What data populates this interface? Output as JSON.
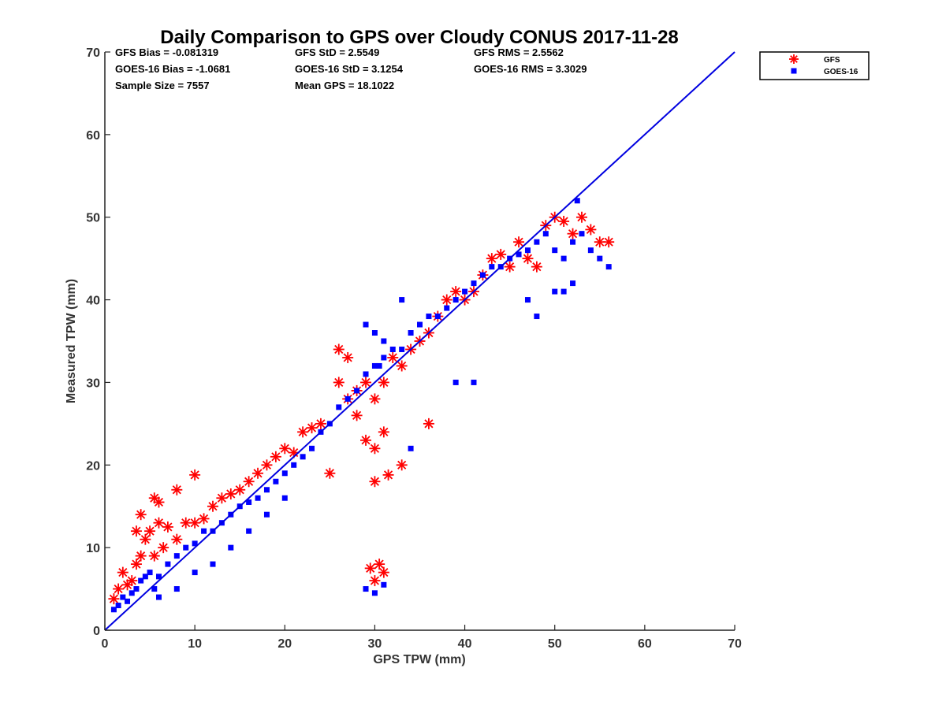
{
  "chart_data": {
    "type": "scatter",
    "title": "Daily Comparison to GPS over Cloudy CONUS 2017-11-28",
    "xlabel": "GPS TPW (mm)",
    "ylabel": "Measured TPW (mm)",
    "xlim": [
      0,
      70
    ],
    "ylim": [
      0,
      70
    ],
    "xticks": [
      "0",
      "10",
      "20",
      "30",
      "40",
      "50",
      "60",
      "70"
    ],
    "yticks": [
      "0",
      "10",
      "20",
      "30",
      "40",
      "50",
      "60",
      "70"
    ],
    "grid": false,
    "legend_position": "outside-top-right",
    "reference_line": {
      "x": [
        0,
        70
      ],
      "y": [
        0,
        70
      ],
      "color": "#0000e0"
    },
    "stats": [
      [
        "GFS Bias = -0.081319",
        "GFS StD = 2.5549",
        "GFS RMS = 2.5562"
      ],
      [
        "GOES-16 Bias = -1.0681",
        "GOES-16 StD = 3.1254",
        "GOES-16 RMS = 3.3029"
      ],
      [
        "Sample Size = 7557",
        "Mean GPS = 18.1022",
        ""
      ]
    ],
    "series": [
      {
        "name": "GFS",
        "marker": "asterisk",
        "color": "#ff0000",
        "x": [
          1.0,
          1.5,
          2.0,
          2.5,
          3.0,
          3.5,
          4.0,
          4.5,
          5.0,
          5.5,
          6.0,
          6.5,
          7.0,
          8.0,
          9.0,
          10.0,
          11.0,
          12.0,
          13.0,
          14.0,
          15.0,
          16.0,
          17.0,
          18.0,
          19.0,
          20.0,
          21.0,
          22.0,
          23.0,
          24.0,
          25.0,
          26.0,
          27.0,
          28.0,
          29.0,
          30.0,
          31.0,
          32.0,
          33.0,
          34.0,
          35.0,
          36.0,
          37.0,
          38.0,
          39.0,
          40.0,
          41.0,
          42.0,
          43.0,
          44.0,
          45.0,
          46.0,
          47.0,
          48.0,
          49.0,
          50.0,
          51.0,
          52.0,
          53.0,
          54.0,
          55.0,
          56.0,
          5.5,
          6.0,
          8.0,
          10.0,
          4.0,
          3.5,
          26.0,
          27.0,
          28.0,
          29.0,
          30.0,
          31.0,
          30.0,
          31.5,
          33.0,
          36.0,
          29.5,
          30.5,
          31.0,
          30.0
        ],
        "y": [
          3.8,
          5.0,
          7.0,
          5.5,
          6.0,
          8.0,
          9.0,
          11.0,
          12.0,
          9.0,
          13.0,
          10.0,
          12.5,
          11.0,
          13.0,
          13.0,
          13.5,
          15.0,
          16.0,
          16.5,
          17.0,
          18.0,
          19.0,
          20.0,
          21.0,
          22.0,
          21.5,
          24.0,
          24.5,
          25.0,
          19.0,
          30.0,
          28.0,
          26.0,
          30.0,
          28.0,
          30.0,
          33.0,
          32.0,
          34.0,
          35.0,
          36.0,
          38.0,
          40.0,
          41.0,
          40.0,
          41.0,
          43.0,
          45.0,
          45.5,
          44.0,
          47.0,
          45.0,
          44.0,
          49.0,
          50.0,
          49.5,
          48.0,
          50.0,
          48.5,
          47.0,
          47.0,
          16.0,
          15.5,
          17.0,
          18.8,
          14.0,
          12.0,
          34.0,
          33.0,
          29.0,
          23.0,
          22.0,
          24.0,
          18.0,
          18.8,
          20.0,
          25.0,
          7.5,
          8.0,
          7.0,
          6.0
        ]
      },
      {
        "name": "GOES-16",
        "marker": "square",
        "color": "#0000ff",
        "x": [
          1.0,
          1.5,
          2.0,
          2.5,
          3.0,
          3.5,
          4.0,
          4.5,
          5.0,
          5.5,
          6.0,
          7.0,
          8.0,
          9.0,
          10.0,
          11.0,
          12.0,
          13.0,
          14.0,
          15.0,
          16.0,
          17.0,
          18.0,
          19.0,
          20.0,
          21.0,
          22.0,
          23.0,
          24.0,
          25.0,
          26.0,
          27.0,
          28.0,
          29.0,
          30.0,
          31.0,
          32.0,
          33.0,
          34.0,
          35.0,
          36.0,
          37.0,
          38.0,
          39.0,
          40.0,
          41.0,
          42.0,
          43.0,
          44.0,
          45.0,
          46.0,
          47.0,
          48.0,
          49.0,
          50.0,
          51.0,
          52.0,
          53.0,
          54.0,
          55.0,
          56.0,
          6.0,
          8.0,
          10.0,
          12.0,
          14.0,
          16.0,
          18.0,
          20.0,
          29.0,
          30.0,
          31.0,
          30.5,
          41.0,
          47.0,
          48.0,
          50.0,
          51.0,
          52.0,
          52.5,
          29.0,
          31.0,
          33.0,
          39.0,
          30.0,
          34.0
        ],
        "y": [
          2.5,
          3.0,
          4.0,
          3.5,
          4.5,
          5.0,
          6.0,
          6.5,
          7.0,
          5.0,
          6.5,
          8.0,
          9.0,
          10.0,
          10.5,
          12.0,
          12.0,
          13.0,
          14.0,
          15.0,
          15.5,
          16.0,
          17.0,
          18.0,
          19.0,
          20.0,
          21.0,
          22.0,
          24.0,
          25.0,
          27.0,
          28.0,
          29.0,
          31.0,
          32.0,
          33.0,
          34.0,
          34.0,
          36.0,
          37.0,
          38.0,
          38.0,
          39.0,
          40.0,
          41.0,
          42.0,
          43.0,
          44.0,
          44.0,
          45.0,
          45.5,
          46.0,
          47.0,
          48.0,
          46.0,
          45.0,
          47.0,
          48.0,
          46.0,
          45.0,
          44.0,
          4.0,
          5.0,
          7.0,
          8.0,
          10.0,
          12.0,
          14.0,
          16.0,
          37.0,
          36.0,
          35.0,
          32.0,
          30.0,
          40.0,
          38.0,
          41.0,
          41.0,
          42.0,
          52.0,
          5.0,
          5.5,
          40.0,
          30.0,
          4.5,
          22.0
        ]
      }
    ]
  }
}
